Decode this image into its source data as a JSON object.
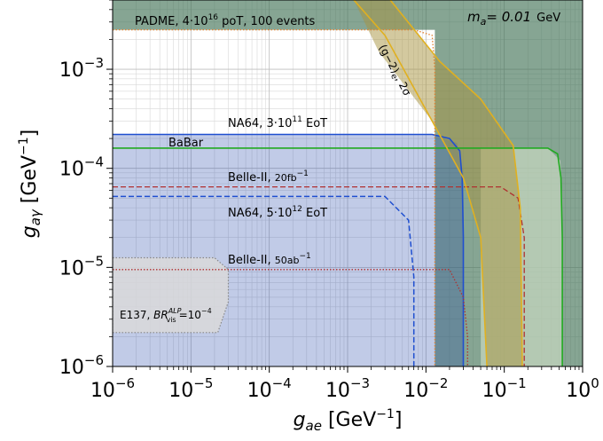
{
  "chart_data": {
    "type": "line",
    "x_scale": "log",
    "y_scale": "log",
    "xlim": [
      1e-06,
      1
    ],
    "ylim": [
      1e-06,
      0.005
    ],
    "grid": true,
    "xlabel": "g_ae [GeV^-1]",
    "ylabel": "g_aγ [GeV^-1]",
    "x_ticks": [
      {
        "value": 1e-06,
        "base": "10",
        "exp": "−6"
      },
      {
        "value": 1e-05,
        "base": "10",
        "exp": "−5"
      },
      {
        "value": 0.0001,
        "base": "10",
        "exp": "−4"
      },
      {
        "value": 0.001,
        "base": "10",
        "exp": "−3"
      },
      {
        "value": 0.01,
        "base": "10",
        "exp": "−2"
      },
      {
        "value": 0.1,
        "base": "10",
        "exp": "−1"
      },
      {
        "value": 1,
        "base": "10",
        "exp": "0"
      }
    ],
    "y_ticks": [
      {
        "value": 1e-06,
        "base": "10",
        "exp": "−6"
      },
      {
        "value": 1e-05,
        "base": "10",
        "exp": "−5"
      },
      {
        "value": 0.0001,
        "base": "10",
        "exp": "−4"
      },
      {
        "value": 0.001,
        "base": "10",
        "exp": "−3"
      }
    ],
    "mass_label": {
      "text": "m",
      "sub": "a",
      "value": "= 0.01",
      "unit": "GeV"
    },
    "regions": [
      {
        "name": "PADME",
        "color": "#3c6e50",
        "opacity": 0.62,
        "points": [
          [
            1e-06,
            0.005
          ],
          [
            1,
            0.005
          ],
          [
            1,
            1e-06
          ],
          [
            0.013,
            1e-06
          ],
          [
            0.013,
            0.0025
          ],
          [
            1e-06,
            0.0025
          ]
        ]
      },
      {
        "name": "NA64, 3·10^11 EoT",
        "color": "#2244aa",
        "opacity": 0.28,
        "points": [
          [
            1e-06,
            0.00022
          ],
          [
            0.012,
            0.00022
          ],
          [
            0.025,
            0.00018
          ],
          [
            0.029,
            8e-05
          ],
          [
            0.03,
            2e-05
          ],
          [
            0.03,
            1e-06
          ],
          [
            1e-06,
            1e-06
          ]
        ]
      },
      {
        "name": "BaBar",
        "color": "#c8d8c0",
        "opacity": 0.7,
        "points": [
          [
            1e-06,
            0.00016
          ],
          [
            0.36,
            0.00016
          ],
          [
            0.52,
            0.00012
          ],
          [
            0.55,
            5e-05
          ],
          [
            0.55,
            1e-06
          ],
          [
            0.05,
            1e-06
          ],
          [
            0.05,
            0.00016
          ]
        ]
      },
      {
        "name": "(g−2)e 2σ",
        "color": "#a89440",
        "opacity": 0.5,
        "points": [
          [
            0.0012,
            0.005
          ],
          [
            0.0035,
            0.005
          ],
          [
            0.015,
            0.0012
          ],
          [
            0.05,
            0.0005
          ],
          [
            0.13,
            0.00017
          ],
          [
            0.16,
            4e-05
          ],
          [
            0.17,
            1e-06
          ],
          [
            0.06,
            1e-06
          ],
          [
            0.05,
            2e-05
          ],
          [
            0.03,
            8e-05
          ],
          [
            0.012,
            0.0003
          ],
          [
            0.0025,
            0.0015
          ]
        ]
      }
    ],
    "curves": [
      {
        "name": "NA64, 3·10^11 EoT",
        "color": "#1f4fd0",
        "dash": "",
        "width": 1.6,
        "points": [
          [
            1e-06,
            0.00022
          ],
          [
            0.012,
            0.00022
          ],
          [
            0.02,
            0.0002
          ],
          [
            0.027,
            0.00015
          ],
          [
            0.029,
            8e-05
          ],
          [
            0.03,
            2e-05
          ],
          [
            0.03,
            1e-06
          ]
        ]
      },
      {
        "name": "BaBar",
        "color": "#22aa22",
        "dash": "",
        "width": 1.6,
        "points": [
          [
            1e-06,
            0.00016
          ],
          [
            0.36,
            0.00016
          ],
          [
            0.48,
            0.00014
          ],
          [
            0.53,
            8e-05
          ],
          [
            0.55,
            2e-05
          ],
          [
            0.55,
            1e-06
          ]
        ]
      },
      {
        "name": "Belle-II, 20fb^-1",
        "color": "#b03030",
        "dash": "6,3",
        "width": 1.3,
        "points": [
          [
            1e-06,
            6.5e-05
          ],
          [
            0.09,
            6.5e-05
          ],
          [
            0.15,
            5e-05
          ],
          [
            0.18,
            2e-05
          ],
          [
            0.18,
            1e-06
          ]
        ]
      },
      {
        "name": "NA64, 5·10^12 EoT",
        "color": "#1f4fd0",
        "dash": "6,3",
        "width": 1.5,
        "points": [
          [
            1e-06,
            5.2e-05
          ],
          [
            0.003,
            5.2e-05
          ],
          [
            0.006,
            3e-05
          ],
          [
            0.007,
            8e-06
          ],
          [
            0.007,
            1e-06
          ]
        ]
      },
      {
        "name": "Belle-II, 50ab^-1",
        "color": "#b03030",
        "dash": "1.5,2",
        "width": 1.3,
        "points": [
          [
            1e-06,
            9.5e-06
          ],
          [
            0.02,
            9.5e-06
          ],
          [
            0.03,
            5e-06
          ],
          [
            0.034,
            2e-06
          ],
          [
            0.034,
            1e-06
          ]
        ]
      },
      {
        "name": "PADME",
        "color": "#e08030",
        "dash": "1.5,2",
        "width": 1.3,
        "points": [
          [
            1e-06,
            0.0025
          ],
          [
            0.007,
            0.0025
          ],
          [
            0.012,
            0.0022
          ],
          [
            0.013,
            0.001
          ],
          [
            0.013,
            1e-06
          ]
        ]
      },
      {
        "name": "(g−2)e left",
        "color": "#e0b020",
        "dash": "",
        "width": 1.6,
        "points": [
          [
            0.0012,
            0.005
          ],
          [
            0.003,
            0.0022
          ],
          [
            0.012,
            0.0003
          ],
          [
            0.03,
            8e-05
          ],
          [
            0.05,
            2e-05
          ],
          [
            0.06,
            1e-06
          ]
        ]
      },
      {
        "name": "(g−2)e right",
        "color": "#e0b020",
        "dash": "",
        "width": 1.6,
        "points": [
          [
            0.0035,
            0.005
          ],
          [
            0.015,
            0.0012
          ],
          [
            0.05,
            0.0005
          ],
          [
            0.13,
            0.00017
          ],
          [
            0.16,
            4e-05
          ],
          [
            0.17,
            1e-06
          ]
        ]
      },
      {
        "name": "E137",
        "color": "#888888",
        "dash": "1.5,2",
        "width": 1.2,
        "points": [
          [
            1e-06,
            1.25e-05
          ],
          [
            2e-05,
            1.25e-05
          ],
          [
            3e-05,
            9.5e-06
          ],
          [
            3e-05,
            4.5e-06
          ],
          [
            2.2e-05,
            2.2e-06
          ],
          [
            1e-06,
            2.2e-06
          ]
        ]
      }
    ],
    "e137_fill": {
      "color": "#d9d9d9",
      "opacity": 0.85
    },
    "annotations": {
      "padme": {
        "name": "PADME, ",
        "n1": "4·10",
        "e1": "16",
        "n2": " poT, 100 events"
      },
      "na64_a": {
        "name": "NA64, ",
        "n1": "3·10",
        "e1": "11",
        "n2": " EoT"
      },
      "babar": "BaBar",
      "belle_a": {
        "name": "Belle-II, ",
        "n1": "20fb",
        "e1": "−1"
      },
      "na64_b": {
        "name": "NA64, ",
        "n1": "5·10",
        "e1": "12",
        "n2": " EoT"
      },
      "belle_b": {
        "name": "Belle-II, ",
        "n1": "50ab",
        "e1": "−1"
      },
      "e137": {
        "name": "E137, ",
        "br": "BR",
        "sup": "ALP",
        "sub": "vis",
        "rest": "=10",
        "exp": "−4"
      },
      "g2": {
        "text": "(g−2)",
        "sub": "e",
        "rest": ", 2σ"
      }
    }
  }
}
